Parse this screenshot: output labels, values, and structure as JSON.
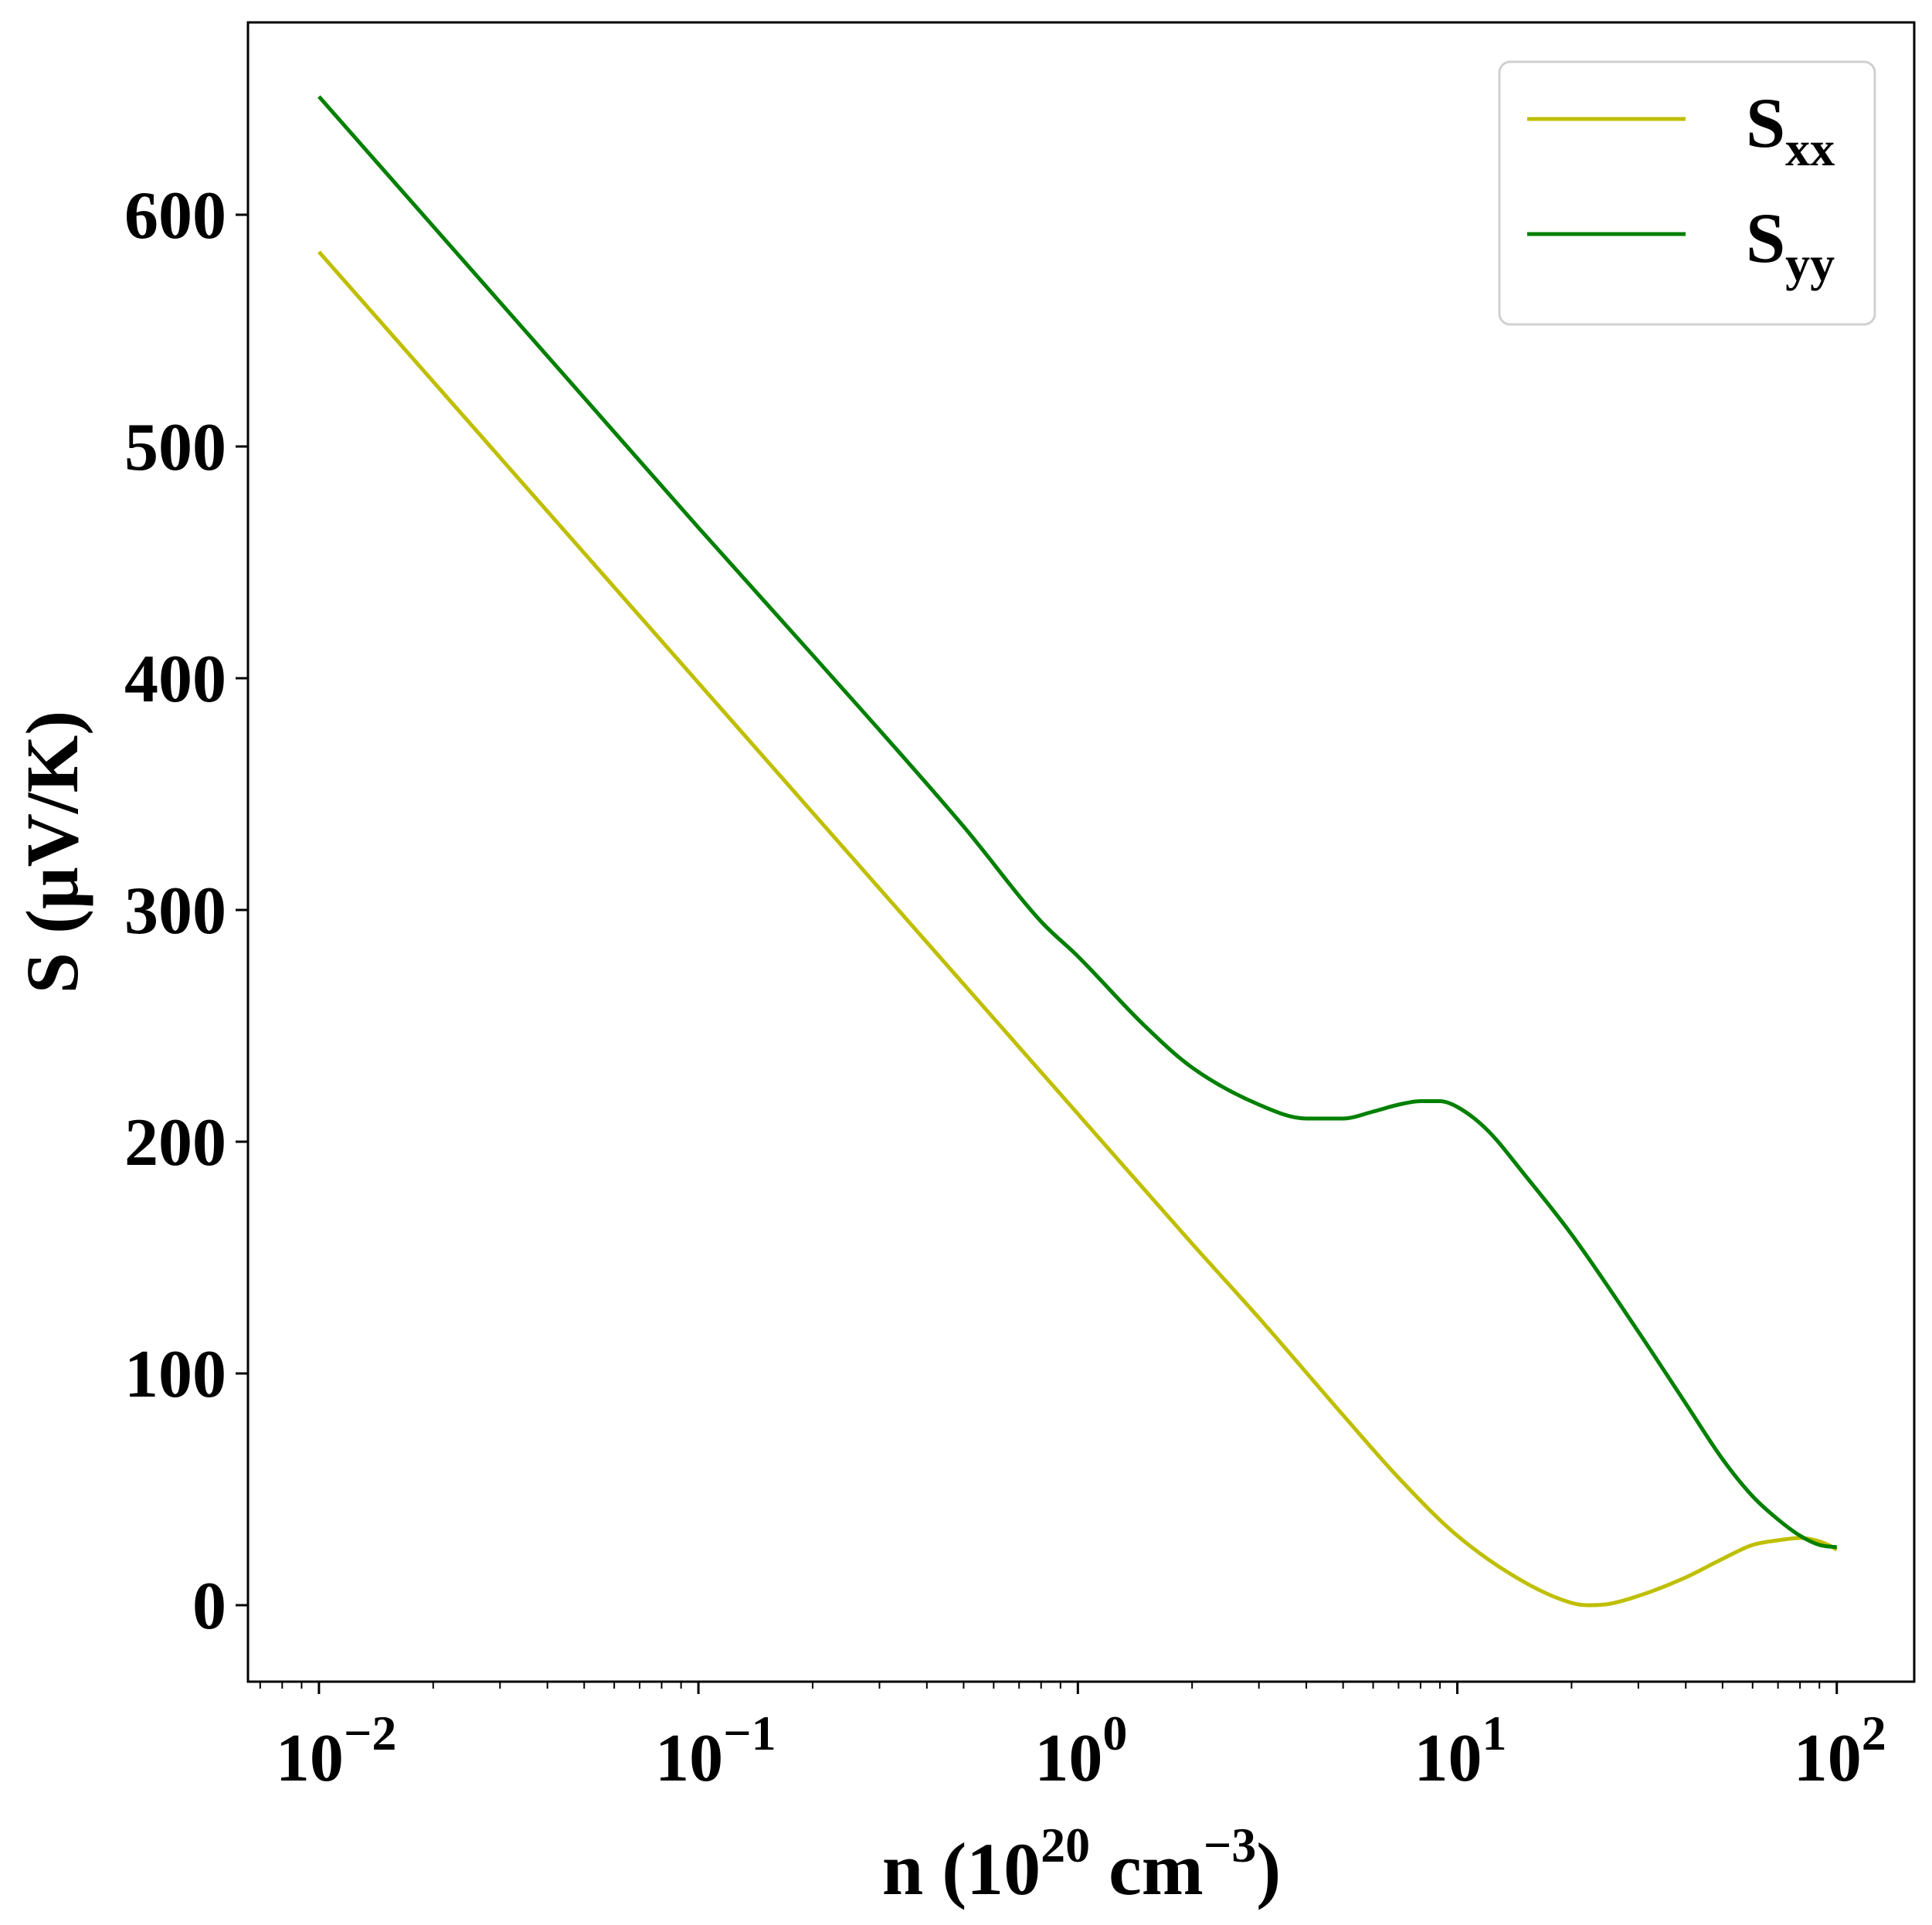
{
  "chart_data": {
    "type": "line",
    "title": "",
    "xlabel": {
      "base": "n (10",
      "sup1": "20",
      "mid": " cm",
      "sup2": "−3",
      "end": ")"
    },
    "ylabel": "S (μV/K)",
    "xscale": "log",
    "xlim": [
      0.0065,
      160
    ],
    "ylim": [
      -33,
      683
    ],
    "x_ticks": [
      {
        "value": 0.01,
        "base": "10",
        "exp": "−2"
      },
      {
        "value": 0.1,
        "base": "10",
        "exp": "−1"
      },
      {
        "value": 1,
        "base": "10",
        "exp": "0"
      },
      {
        "value": 10,
        "base": "10",
        "exp": "1"
      },
      {
        "value": 100,
        "base": "10",
        "exp": "2"
      }
    ],
    "y_ticks": [
      0,
      100,
      200,
      300,
      400,
      500,
      600
    ],
    "grid": false,
    "legend_position": "top-right",
    "series": [
      {
        "name": "xx",
        "label_main": "S",
        "label_sub": "xx",
        "color": "#bfbf00",
        "points": [
          [
            0.01,
            584
          ],
          [
            0.02,
            528
          ],
          [
            0.05,
            454
          ],
          [
            0.1,
            398
          ],
          [
            0.2,
            342
          ],
          [
            0.5,
            268
          ],
          [
            1,
            212
          ],
          [
            2,
            156
          ],
          [
            3,
            124
          ],
          [
            5,
            82
          ],
          [
            7,
            55
          ],
          [
            10,
            30
          ],
          [
            15,
            10
          ],
          [
            20,
            1
          ],
          [
            22,
            0
          ],
          [
            25,
            0.5
          ],
          [
            30,
            4
          ],
          [
            40,
            12
          ],
          [
            50,
            20
          ],
          [
            60,
            26
          ],
          [
            70,
            28
          ],
          [
            80,
            29
          ],
          [
            88,
            28
          ],
          [
            95,
            26
          ],
          [
            100,
            24
          ]
        ]
      },
      {
        "name": "yy",
        "label_main": "S",
        "label_sub": "yy",
        "color": "#008000",
        "points": [
          [
            0.01,
            651
          ],
          [
            0.02,
            595
          ],
          [
            0.05,
            521
          ],
          [
            0.1,
            465
          ],
          [
            0.2,
            410
          ],
          [
            0.5,
            336
          ],
          [
            0.8,
            295
          ],
          [
            1,
            280
          ],
          [
            1.5,
            250
          ],
          [
            2,
            232
          ],
          [
            3,
            216
          ],
          [
            4,
            210
          ],
          [
            5,
            210
          ],
          [
            6,
            213
          ],
          [
            7,
            216
          ],
          [
            8,
            217.5
          ],
          [
            9,
            217.5
          ],
          [
            10,
            215
          ],
          [
            12,
            205
          ],
          [
            15,
            186
          ],
          [
            20,
            160
          ],
          [
            30,
            118
          ],
          [
            40,
            87
          ],
          [
            50,
            63
          ],
          [
            60,
            47
          ],
          [
            70,
            37
          ],
          [
            80,
            30
          ],
          [
            90,
            26
          ],
          [
            100,
            25
          ]
        ]
      }
    ]
  }
}
